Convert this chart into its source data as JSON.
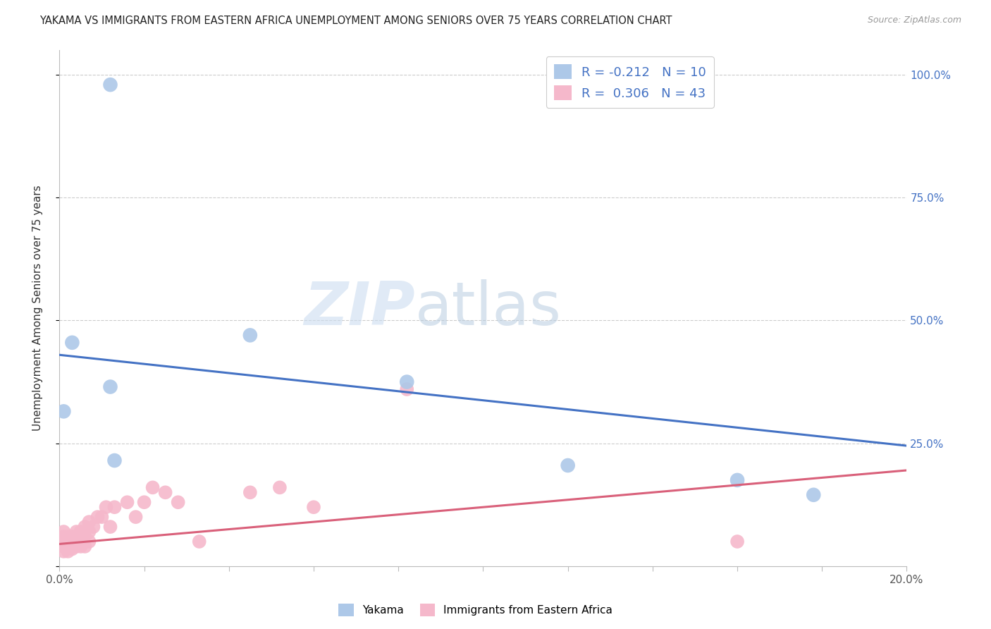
{
  "title": "YAKAMA VS IMMIGRANTS FROM EASTERN AFRICA UNEMPLOYMENT AMONG SENIORS OVER 75 YEARS CORRELATION CHART",
  "source": "Source: ZipAtlas.com",
  "ylabel": "Unemployment Among Seniors over 75 years",
  "x_min": 0.0,
  "x_max": 0.2,
  "y_min": 0.0,
  "y_max": 1.05,
  "legend_yakama": "Yakama",
  "legend_eastern_africa": "Immigrants from Eastern Africa",
  "R_yakama": -0.212,
  "N_yakama": 10,
  "R_eastern_africa": 0.306,
  "N_eastern_africa": 43,
  "yakama_color": "#adc8e8",
  "eastern_africa_color": "#f5b8cb",
  "trend_yakama_color": "#4472c4",
  "trend_eastern_africa_color": "#d9607a",
  "watermark_zip": "ZIP",
  "watermark_atlas": "atlas",
  "yakama_x": [
    0.001,
    0.003,
    0.012,
    0.013,
    0.045,
    0.082,
    0.012,
    0.12,
    0.16,
    0.178
  ],
  "yakama_y": [
    0.315,
    0.455,
    0.365,
    0.215,
    0.47,
    0.375,
    0.98,
    0.205,
    0.175,
    0.145
  ],
  "eastern_africa_x": [
    0.001,
    0.001,
    0.001,
    0.001,
    0.001,
    0.002,
    0.002,
    0.002,
    0.002,
    0.003,
    0.003,
    0.003,
    0.003,
    0.004,
    0.004,
    0.004,
    0.005,
    0.005,
    0.005,
    0.006,
    0.006,
    0.006,
    0.007,
    0.007,
    0.007,
    0.008,
    0.009,
    0.01,
    0.011,
    0.012,
    0.013,
    0.016,
    0.018,
    0.02,
    0.022,
    0.025,
    0.028,
    0.033,
    0.045,
    0.052,
    0.06,
    0.082,
    0.16
  ],
  "eastern_africa_y": [
    0.03,
    0.04,
    0.05,
    0.06,
    0.07,
    0.03,
    0.04,
    0.05,
    0.06,
    0.035,
    0.04,
    0.05,
    0.06,
    0.04,
    0.06,
    0.07,
    0.04,
    0.05,
    0.07,
    0.04,
    0.06,
    0.08,
    0.05,
    0.07,
    0.09,
    0.08,
    0.1,
    0.1,
    0.12,
    0.08,
    0.12,
    0.13,
    0.1,
    0.13,
    0.16,
    0.15,
    0.13,
    0.05,
    0.15,
    0.16,
    0.12,
    0.36,
    0.05
  ],
  "yakama_trendline_x0": 0.0,
  "yakama_trendline_y0": 0.43,
  "yakama_trendline_x1": 0.2,
  "yakama_trendline_y1": 0.245,
  "eastern_africa_trendline_x0": 0.0,
  "eastern_africa_trendline_y0": 0.045,
  "eastern_africa_trendline_x1": 0.2,
  "eastern_africa_trendline_y1": 0.195
}
